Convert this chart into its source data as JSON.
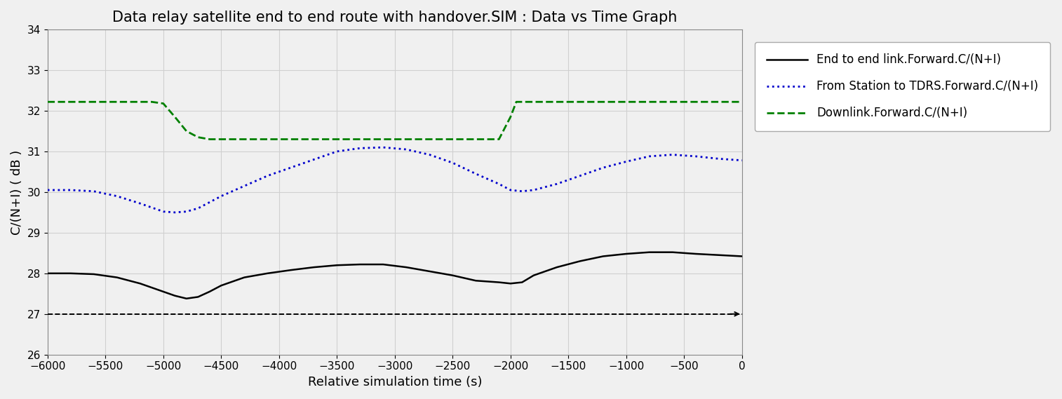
{
  "title": "Data relay satellite end to end route with handover.SIM : Data vs Time Graph",
  "xlabel": "Relative simulation time (s)",
  "ylabel": "C/(N+I) ( dB )",
  "xlim": [
    -6000,
    0
  ],
  "ylim": [
    26,
    34
  ],
  "yticks": [
    26,
    27,
    28,
    29,
    30,
    31,
    32,
    33,
    34
  ],
  "xticks": [
    -6000,
    -5500,
    -5000,
    -4500,
    -4000,
    -3500,
    -3000,
    -2500,
    -2000,
    -1500,
    -1000,
    -500,
    0
  ],
  "background_color": "#f0f0f0",
  "plot_bg_color": "#f0f0f0",
  "grid_color": "#d0d0d0",
  "black_line": {
    "label": "End to end link.Forward.C/(N+I)",
    "color": "#000000",
    "linestyle": "-",
    "linewidth": 1.8,
    "x": [
      -6000,
      -5800,
      -5600,
      -5400,
      -5200,
      -5000,
      -4900,
      -4800,
      -4700,
      -4600,
      -4500,
      -4300,
      -4100,
      -3900,
      -3700,
      -3500,
      -3300,
      -3100,
      -2900,
      -2700,
      -2500,
      -2300,
      -2100,
      -2000,
      -1900,
      -1800,
      -1600,
      -1400,
      -1200,
      -1000,
      -800,
      -600,
      -400,
      -200,
      0
    ],
    "y": [
      28.0,
      28.0,
      27.98,
      27.9,
      27.75,
      27.55,
      27.45,
      27.38,
      27.42,
      27.55,
      27.7,
      27.9,
      28.0,
      28.08,
      28.15,
      28.2,
      28.22,
      28.22,
      28.15,
      28.05,
      27.95,
      27.82,
      27.78,
      27.75,
      27.78,
      27.95,
      28.15,
      28.3,
      28.42,
      28.48,
      28.52,
      28.52,
      28.48,
      28.45,
      28.42
    ]
  },
  "black_dashed": {
    "color": "#000000",
    "linestyle": "--",
    "linewidth": 1.4,
    "x": [
      -6000,
      0
    ],
    "y": [
      27.0,
      27.0
    ]
  },
  "blue_line": {
    "label": "From Station to TDRS.Forward.C/(N+I)",
    "color": "#0000cc",
    "linestyle": ":",
    "linewidth": 2.0,
    "x": [
      -6000,
      -5800,
      -5600,
      -5400,
      -5200,
      -5000,
      -4900,
      -4800,
      -4700,
      -4600,
      -4500,
      -4300,
      -4100,
      -3900,
      -3700,
      -3500,
      -3300,
      -3100,
      -2900,
      -2700,
      -2500,
      -2300,
      -2100,
      -2000,
      -1900,
      -1800,
      -1600,
      -1400,
      -1200,
      -1000,
      -800,
      -600,
      -400,
      -200,
      0
    ],
    "y": [
      30.05,
      30.05,
      30.02,
      29.9,
      29.72,
      29.52,
      29.5,
      29.52,
      29.6,
      29.75,
      29.9,
      30.15,
      30.4,
      30.6,
      30.8,
      31.0,
      31.08,
      31.1,
      31.05,
      30.92,
      30.72,
      30.45,
      30.2,
      30.05,
      30.02,
      30.05,
      30.2,
      30.4,
      30.6,
      30.75,
      30.88,
      30.92,
      30.88,
      30.82,
      30.78
    ]
  },
  "green_line": {
    "label": "Downlink.Forward.C/(N+I)",
    "color": "#008000",
    "linestyle": "--",
    "linewidth": 2.0,
    "x": [
      -6000,
      -5200,
      -5100,
      -5000,
      -4900,
      -4800,
      -4700,
      -4600,
      -4500,
      -2200,
      -2100,
      -2000,
      -1950,
      0
    ],
    "y": [
      32.22,
      32.22,
      32.22,
      32.18,
      31.85,
      31.5,
      31.35,
      31.3,
      31.3,
      31.3,
      31.3,
      31.85,
      32.22,
      32.22
    ]
  },
  "title_fontsize": 15,
  "label_fontsize": 13,
  "tick_fontsize": 11,
  "legend_fontsize": 12
}
